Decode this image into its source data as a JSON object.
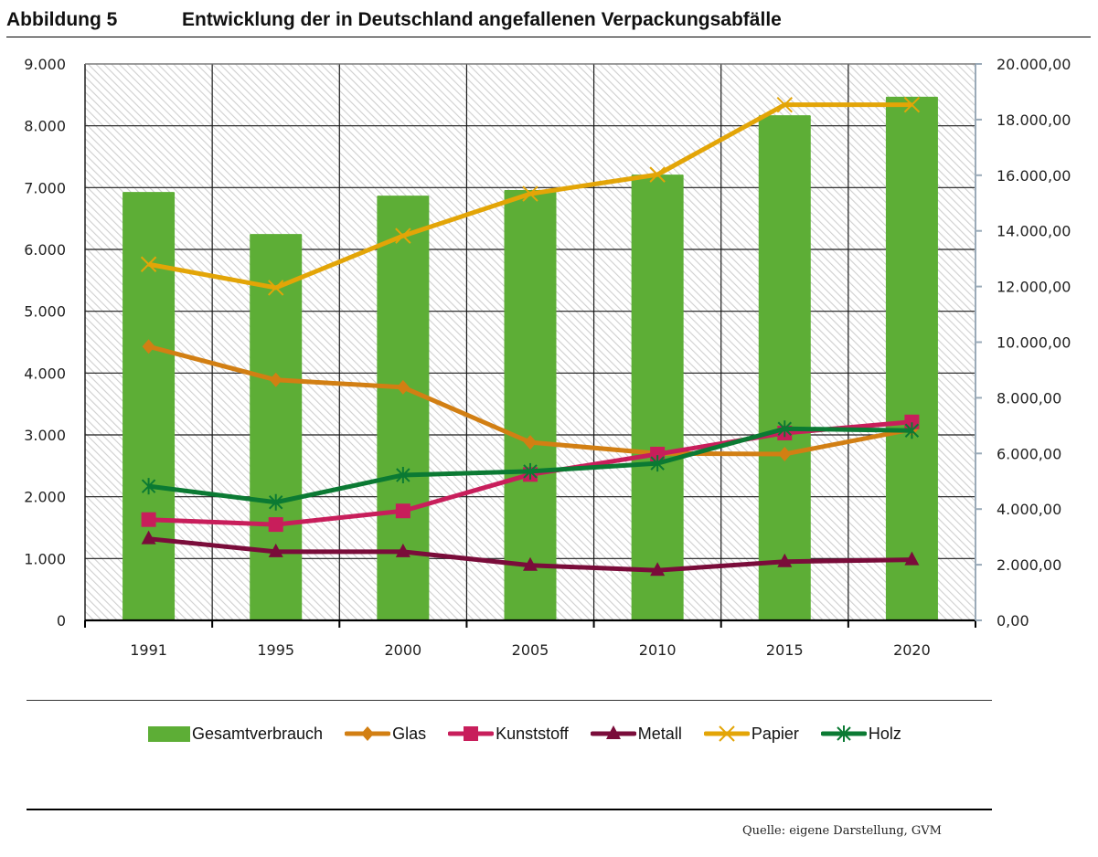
{
  "figure": {
    "number_label": "Abbildung 5",
    "title": "Entwicklung der in Deutschland angefallenen Verpackungsabfälle",
    "source": "Quelle: eigene Darstellung, GVM"
  },
  "colors": {
    "Gesamtverbrauch": "#5DAE36",
    "Glas": "#D27F13",
    "Kunststoff": "#C81E5B",
    "Metall": "#7A0C3A",
    "Papier": "#E3A507",
    "Holz": "#0B7A33",
    "plot_background_hatch": "#d2d2d2",
    "gridline": "#1a1a1a",
    "right_axis": "#9AAAB8"
  },
  "chart_data": {
    "type": "bar",
    "title": "Entwicklung der in Deutschland angefallenen Verpackungsabfälle",
    "xlabel": "",
    "ylabel": "",
    "categories": [
      "1991",
      "1995",
      "2000",
      "2005",
      "2010",
      "2015",
      "2020"
    ],
    "ylim": [
      0,
      9000
    ],
    "y_ticks": [
      0,
      1000,
      2000,
      3000,
      4000,
      5000,
      6000,
      7000,
      8000,
      9000
    ],
    "y_tick_labels": [
      "0",
      "1.000",
      "2.000",
      "3.000",
      "4.000",
      "5.000",
      "6.000",
      "7.000",
      "8.000",
      "9.000"
    ],
    "y2lim": [
      0,
      20000
    ],
    "y2_ticks": [
      0,
      2000,
      4000,
      6000,
      8000,
      10000,
      12000,
      14000,
      16000,
      18000,
      20000
    ],
    "y2_tick_labels": [
      "0,00",
      "2.000,00",
      "4.000,00",
      "6.000,00",
      "8.000,00",
      "10.000,00",
      "12.000,00",
      "14.000,00",
      "16.000,00",
      "18.000,00",
      "20.000,00"
    ],
    "grid": true,
    "legend_position": "bottom",
    "series": [
      {
        "name": "Gesamtverbrauch",
        "type": "bar",
        "marker": "none",
        "values": [
          6930,
          6250,
          6870,
          6960,
          7210,
          8170,
          8470
        ]
      },
      {
        "name": "Glas",
        "type": "line",
        "marker": "diamond",
        "values": [
          4430,
          3890,
          3770,
          2880,
          2700,
          2690,
          3090
        ]
      },
      {
        "name": "Kunststoff",
        "type": "line",
        "marker": "square",
        "values": [
          1630,
          1550,
          1770,
          2360,
          2690,
          3030,
          3210
        ]
      },
      {
        "name": "Metall",
        "type": "line",
        "marker": "triangle",
        "values": [
          1320,
          1110,
          1110,
          890,
          810,
          950,
          980
        ]
      },
      {
        "name": "Papier",
        "type": "line",
        "marker": "x",
        "values": [
          5760,
          5380,
          6220,
          6900,
          7210,
          8340,
          8340
        ]
      },
      {
        "name": "Holz",
        "type": "line",
        "marker": "asterisk",
        "values": [
          2170,
          1910,
          2350,
          2410,
          2540,
          3100,
          3070
        ]
      }
    ]
  },
  "legend": {
    "items": [
      {
        "label": "Gesamtverbrauch",
        "kind": "bar",
        "marker": "none"
      },
      {
        "label": "Glas",
        "kind": "line",
        "marker": "diamond"
      },
      {
        "label": "Kunststoff",
        "kind": "line",
        "marker": "square"
      },
      {
        "label": "Metall",
        "kind": "line",
        "marker": "triangle"
      },
      {
        "label": "Papier",
        "kind": "line",
        "marker": "x"
      },
      {
        "label": "Holz",
        "kind": "line",
        "marker": "asterisk"
      }
    ]
  }
}
